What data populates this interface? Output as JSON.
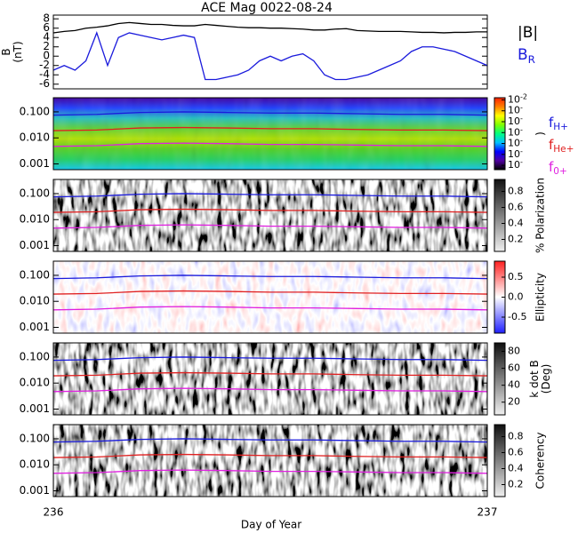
{
  "title": "ACE Mag 0022-08-24",
  "x_axis": {
    "xlim": [
      236,
      237
    ],
    "xticks": [
      236,
      237
    ],
    "xlabel": "Day of Year"
  },
  "gyrofrequencies": {
    "x": [
      236,
      236.1,
      236.2,
      236.3,
      236.4,
      236.5,
      236.6,
      236.7,
      236.8,
      236.9,
      237
    ],
    "series": [
      {
        "name": "f",
        "subscript": "H+",
        "color": "#1a1adc",
        "values": [
          0.075,
          0.08,
          0.095,
          0.1,
          0.095,
          0.09,
          0.09,
          0.085,
          0.08,
          0.08,
          0.075
        ]
      },
      {
        "name": "f",
        "subscript": "He+",
        "color": "#e02020",
        "values": [
          0.019,
          0.02,
          0.024,
          0.025,
          0.024,
          0.0225,
          0.0225,
          0.021,
          0.02,
          0.02,
          0.019
        ]
      },
      {
        "name": "f",
        "subscript": "0+",
        "color": "#e020e0",
        "values": [
          0.0047,
          0.005,
          0.006,
          0.0063,
          0.006,
          0.0056,
          0.0056,
          0.0053,
          0.005,
          0.005,
          0.0047
        ]
      }
    ]
  },
  "chart_data": [
    {
      "type": "line",
      "ylabel": [
        "B",
        "(nT)"
      ],
      "ylim": [
        -7,
        8.8
      ],
      "yticks": [
        -6,
        -4,
        -2,
        0,
        2,
        4,
        6,
        8
      ],
      "x": [
        236,
        236.025,
        236.05,
        236.075,
        236.1,
        236.125,
        236.15,
        236.175,
        236.2,
        236.225,
        236.25,
        236.275,
        236.3,
        236.325,
        236.35,
        236.375,
        236.4,
        236.425,
        236.45,
        236.475,
        236.5,
        236.525,
        236.55,
        236.575,
        236.6,
        236.625,
        236.65,
        236.675,
        236.7,
        236.725,
        236.75,
        236.775,
        236.8,
        236.825,
        236.85,
        236.875,
        236.9,
        236.925,
        236.95,
        236.975,
        237
      ],
      "series": [
        {
          "name": "|B|",
          "color": "#000000",
          "values": [
            5,
            5.3,
            5.5,
            6,
            6.2,
            6.5,
            7,
            7.2,
            7,
            6.8,
            6.8,
            6.6,
            6.5,
            6.5,
            6.8,
            6.6,
            6.4,
            6.2,
            6.1,
            6.1,
            6,
            6,
            5.9,
            5.8,
            5.6,
            5.6,
            5.8,
            5.9,
            5.5,
            5.4,
            5.3,
            5.3,
            5.3,
            5.2,
            5.1,
            5.1,
            5.0,
            5.1,
            5.1,
            5.2,
            5.2
          ]
        },
        {
          "name": "B",
          "subscript": "R",
          "color": "#1a1adc",
          "values": [
            -3,
            -2,
            -3,
            -1,
            5,
            -2,
            4,
            5,
            4.5,
            4,
            3.5,
            4,
            4.5,
            4,
            -5,
            -5,
            -4.5,
            -4,
            -3,
            -1,
            0,
            -1,
            0,
            0.5,
            -1,
            -4,
            -5,
            -5,
            -4.5,
            -4,
            -3,
            -2,
            -1,
            1,
            2,
            2,
            1.5,
            1,
            0,
            -1,
            -2
          ]
        }
      ]
    },
    {
      "type": "spectrogram",
      "log": true,
      "ylim": [
        0.0006,
        0.35
      ],
      "yticks": [
        {
          "value": 0.001,
          "label": "0.001"
        },
        {
          "value": 0.01,
          "label": "0.010"
        },
        {
          "value": 0.1,
          "label": "0.100"
        }
      ],
      "texture": "color",
      "background": [
        "#10c8f0",
        "#20d060",
        "#50d020",
        "#b0e000",
        "#60d030",
        "#20c0c0",
        "#2040ff",
        "#4000a0"
      ],
      "colormap": [
        "#000000",
        "#5000a0",
        "#0000ff",
        "#00c0ff",
        "#00ff80",
        "#80ff00",
        "#ffff00",
        "#ff8000",
        "#ff2000"
      ],
      "clim": [
        -8.4,
        -1.8
      ],
      "clabel": [
        ")"
      ],
      "cticks": [
        {
          "value": -2,
          "label": "10",
          "sup": "-2"
        },
        {
          "value": -3,
          "label": "10",
          "sup": "-"
        },
        {
          "value": -4,
          "label": "10",
          "sup": "-"
        },
        {
          "value": -5,
          "label": "10",
          "sup": "-"
        },
        {
          "value": -6,
          "label": "10",
          "sup": "-"
        },
        {
          "value": -7,
          "label": "10",
          "sup": "-"
        },
        {
          "value": -8,
          "label": "10",
          "sup": "-"
        }
      ],
      "legend": true
    },
    {
      "type": "spectrogram",
      "log": true,
      "ylim": [
        0.0006,
        0.35
      ],
      "yticks": [
        {
          "value": 0.001,
          "label": "0.001"
        },
        {
          "value": 0.01,
          "label": "0.010"
        },
        {
          "value": 0.1,
          "label": "0.100"
        }
      ],
      "texture": "gray",
      "colormap": [
        "#f0f0f0",
        "#101010"
      ],
      "clim": [
        0.05,
        0.95
      ],
      "clabel": [
        "% Polarization"
      ],
      "cticks": [
        0.2,
        0.4,
        0.6,
        0.8
      ]
    },
    {
      "type": "spectrogram",
      "log": true,
      "ylim": [
        0.0006,
        0.35
      ],
      "yticks": [
        {
          "value": 0.001,
          "label": "0.001"
        },
        {
          "value": 0.01,
          "label": "0.010"
        },
        {
          "value": 0.1,
          "label": "0.100"
        }
      ],
      "texture": "diverging",
      "colormap": [
        "#2020ff",
        "#ffffff",
        "#ff2020"
      ],
      "clim": [
        -0.9,
        0.9
      ],
      "clabel": [
        "Ellipticity"
      ],
      "cticks": [
        -0.5,
        {
          "value": 0,
          "label": "0.0"
        },
        0.5
      ]
    },
    {
      "type": "spectrogram",
      "log": true,
      "ylim": [
        0.0006,
        0.35
      ],
      "yticks": [
        {
          "value": 0.001,
          "label": "0.001"
        },
        {
          "value": 0.01,
          "label": "0.010"
        },
        {
          "value": 0.1,
          "label": "0.100"
        }
      ],
      "texture": "gray",
      "colormap": [
        "#f0f0f0",
        "#101010"
      ],
      "clim": [
        5,
        90
      ],
      "clabel": [
        "k dot B",
        "(Deg)"
      ],
      "cticks": [
        20,
        40,
        60,
        80
      ]
    },
    {
      "type": "spectrogram",
      "log": true,
      "ylim": [
        0.0006,
        0.35
      ],
      "yticks": [
        {
          "value": 0.001,
          "label": "0.001"
        },
        {
          "value": 0.01,
          "label": "0.010"
        },
        {
          "value": 0.1,
          "label": "0.100"
        }
      ],
      "texture": "gray",
      "colormap": [
        "#f0f0f0",
        "#101010"
      ],
      "clim": [
        0.05,
        0.95
      ],
      "clabel": [
        "Coherency"
      ],
      "cticks": [
        0.2,
        0.4,
        0.6,
        0.8
      ]
    }
  ]
}
